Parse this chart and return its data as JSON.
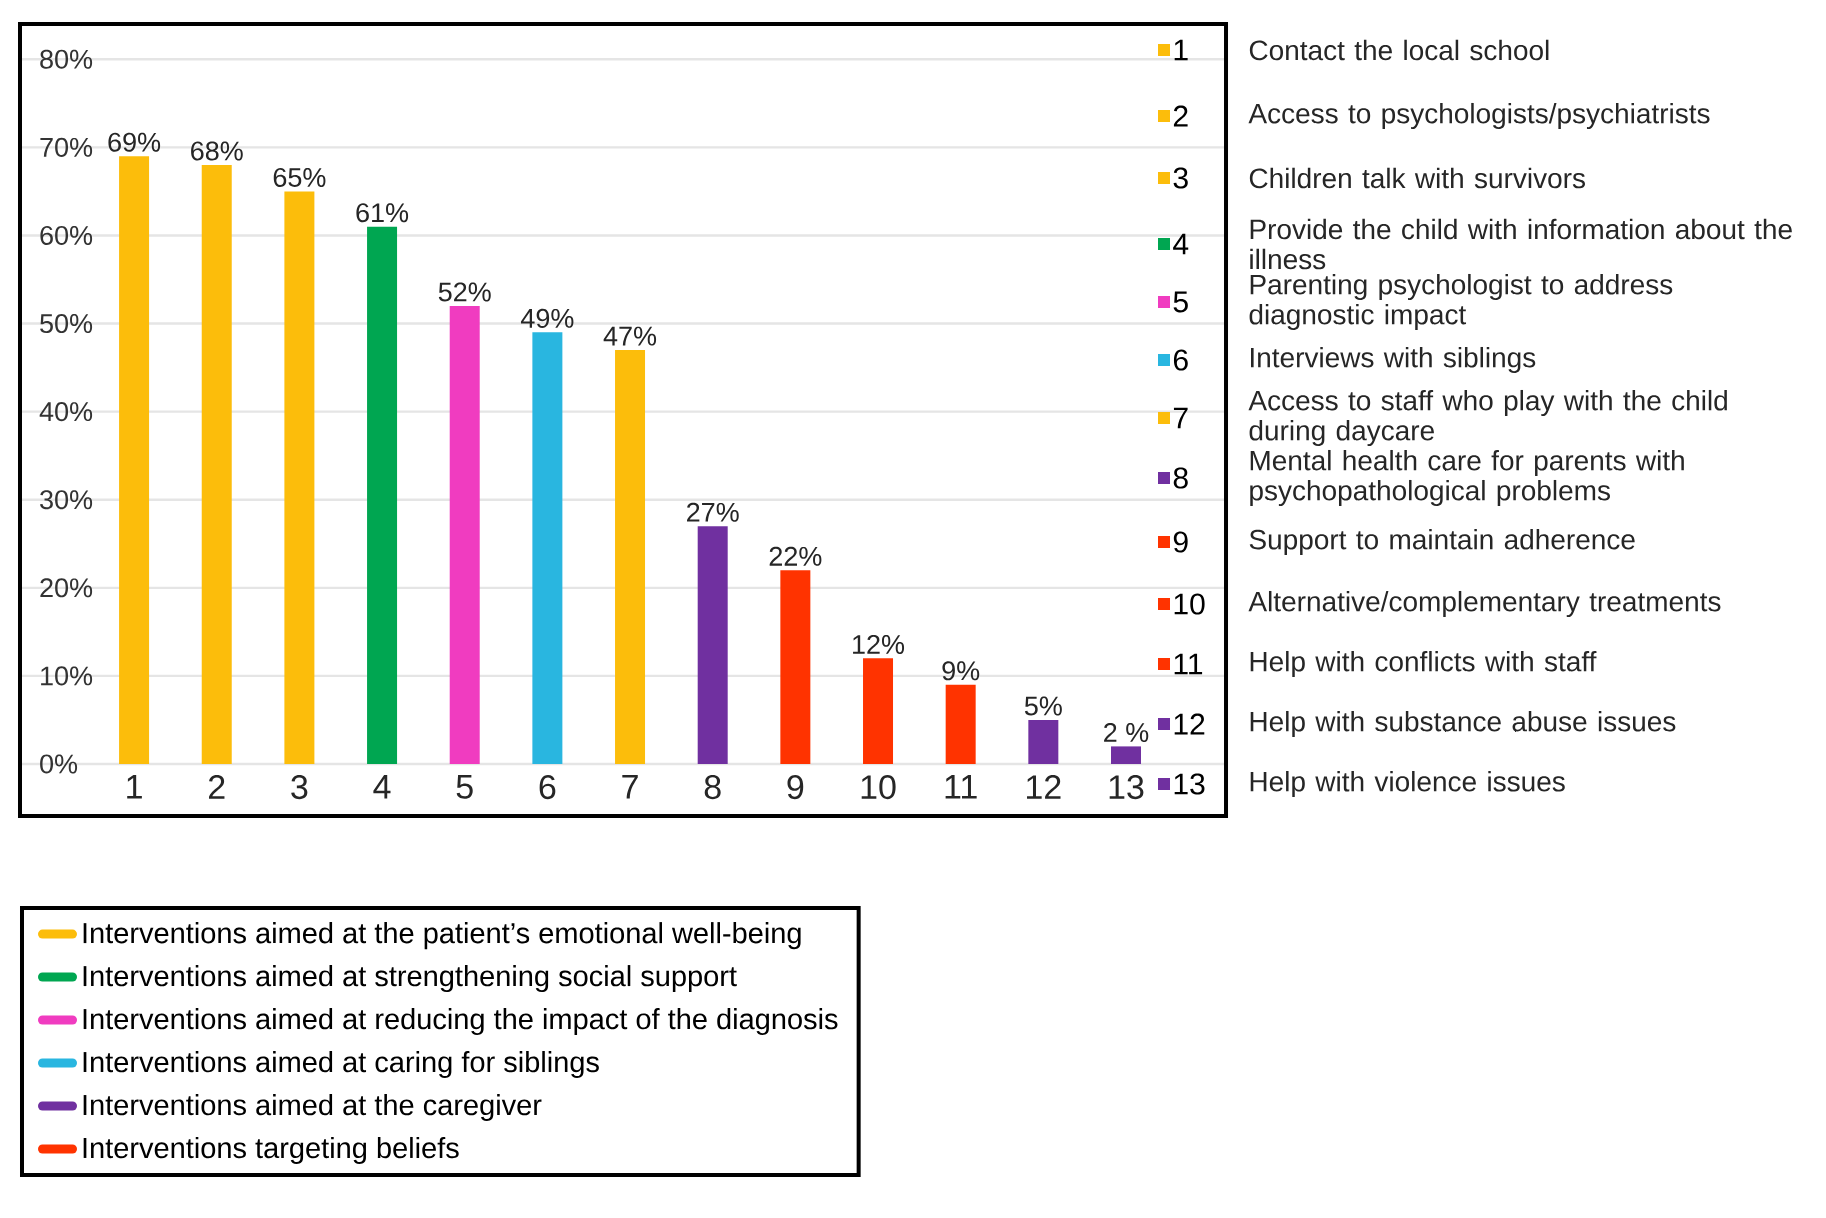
{
  "chart_data": {
    "type": "bar",
    "categories": [
      "1",
      "2",
      "3",
      "4",
      "5",
      "6",
      "7",
      "8",
      "9",
      "10",
      "11",
      "12",
      "13"
    ],
    "series": [
      {
        "name": "Interventions aimed at the patient’s emotional well-being",
        "color": "#fcbd0b",
        "values": [
          69,
          68,
          65,
          null,
          null,
          null,
          47,
          null,
          null,
          null,
          null,
          null,
          null
        ],
        "value_labels": [
          "69%",
          "68%",
          "65%",
          null,
          null,
          null,
          "47%",
          null,
          null,
          null,
          null,
          null,
          null
        ]
      },
      {
        "name": "Interventions aimed at strengthening social support",
        "color": "#00a651",
        "values": [
          null,
          null,
          null,
          61,
          null,
          null,
          null,
          null,
          null,
          null,
          null,
          null,
          null
        ],
        "value_labels": [
          null,
          null,
          null,
          "61%",
          null,
          null,
          null,
          null,
          null,
          null,
          null,
          null,
          null
        ]
      },
      {
        "name": "Interventions aimed at reducing the impact of the diagnosis",
        "color": "#f03cc0",
        "values": [
          null,
          null,
          null,
          null,
          52,
          null,
          null,
          null,
          null,
          null,
          null,
          null,
          null
        ],
        "value_labels": [
          null,
          null,
          null,
          null,
          "52%",
          null,
          null,
          null,
          null,
          null,
          null,
          null,
          null
        ]
      },
      {
        "name": "Interventions aimed at caring for siblings",
        "color": "#29b6e0",
        "values": [
          null,
          null,
          null,
          null,
          null,
          49,
          null,
          null,
          null,
          null,
          null,
          null,
          null
        ],
        "value_labels": [
          null,
          null,
          null,
          null,
          null,
          "49%",
          null,
          null,
          null,
          null,
          null,
          null,
          null
        ]
      },
      {
        "name": "Interventions aimed at the caregiver",
        "color": "#7030a0",
        "values": [
          null,
          null,
          null,
          null,
          null,
          null,
          null,
          27,
          null,
          null,
          null,
          5,
          2
        ],
        "value_labels": [
          null,
          null,
          null,
          null,
          null,
          null,
          null,
          "27%",
          null,
          null,
          null,
          "5%",
          "2 %"
        ]
      },
      {
        "name": "Interventions targeting beliefs",
        "color": "#ff3300",
        "values": [
          null,
          null,
          null,
          null,
          null,
          null,
          null,
          null,
          22,
          12,
          9,
          null,
          null
        ],
        "value_labels": [
          null,
          null,
          null,
          null,
          null,
          null,
          null,
          null,
          "22%",
          "12%",
          "9%",
          null,
          null
        ]
      }
    ],
    "ylim": [
      0,
      84
    ],
    "yticks": [
      {
        "value": 0,
        "label": "0%"
      },
      {
        "value": 10,
        "label": "10%"
      },
      {
        "value": 20,
        "label": "20%"
      },
      {
        "value": 30,
        "label": "30%"
      },
      {
        "value": 40,
        "label": "40%"
      },
      {
        "value": 50,
        "label": "50%"
      },
      {
        "value": 60,
        "label": "60%"
      },
      {
        "value": 70,
        "label": "70%"
      },
      {
        "value": 80,
        "label": "80%"
      }
    ],
    "grid": "y",
    "legend": "bottom",
    "annotations": [
      "Contact the local school",
      "Access to psychologists/psychiatrists",
      "Children talk with survivors",
      "Provide the child with information about the illness",
      "Parenting psychologist to address diagnostic impact",
      "Interviews with siblings",
      "Access to staff who play with the child during daycare",
      "Mental health care for parents with psychopathological problems",
      "Support to maintain adherence",
      "Alternative/complementary treatments",
      "Help with conflicts with staff",
      "Help with substance abuse issues",
      "Help with violence issues"
    ]
  }
}
